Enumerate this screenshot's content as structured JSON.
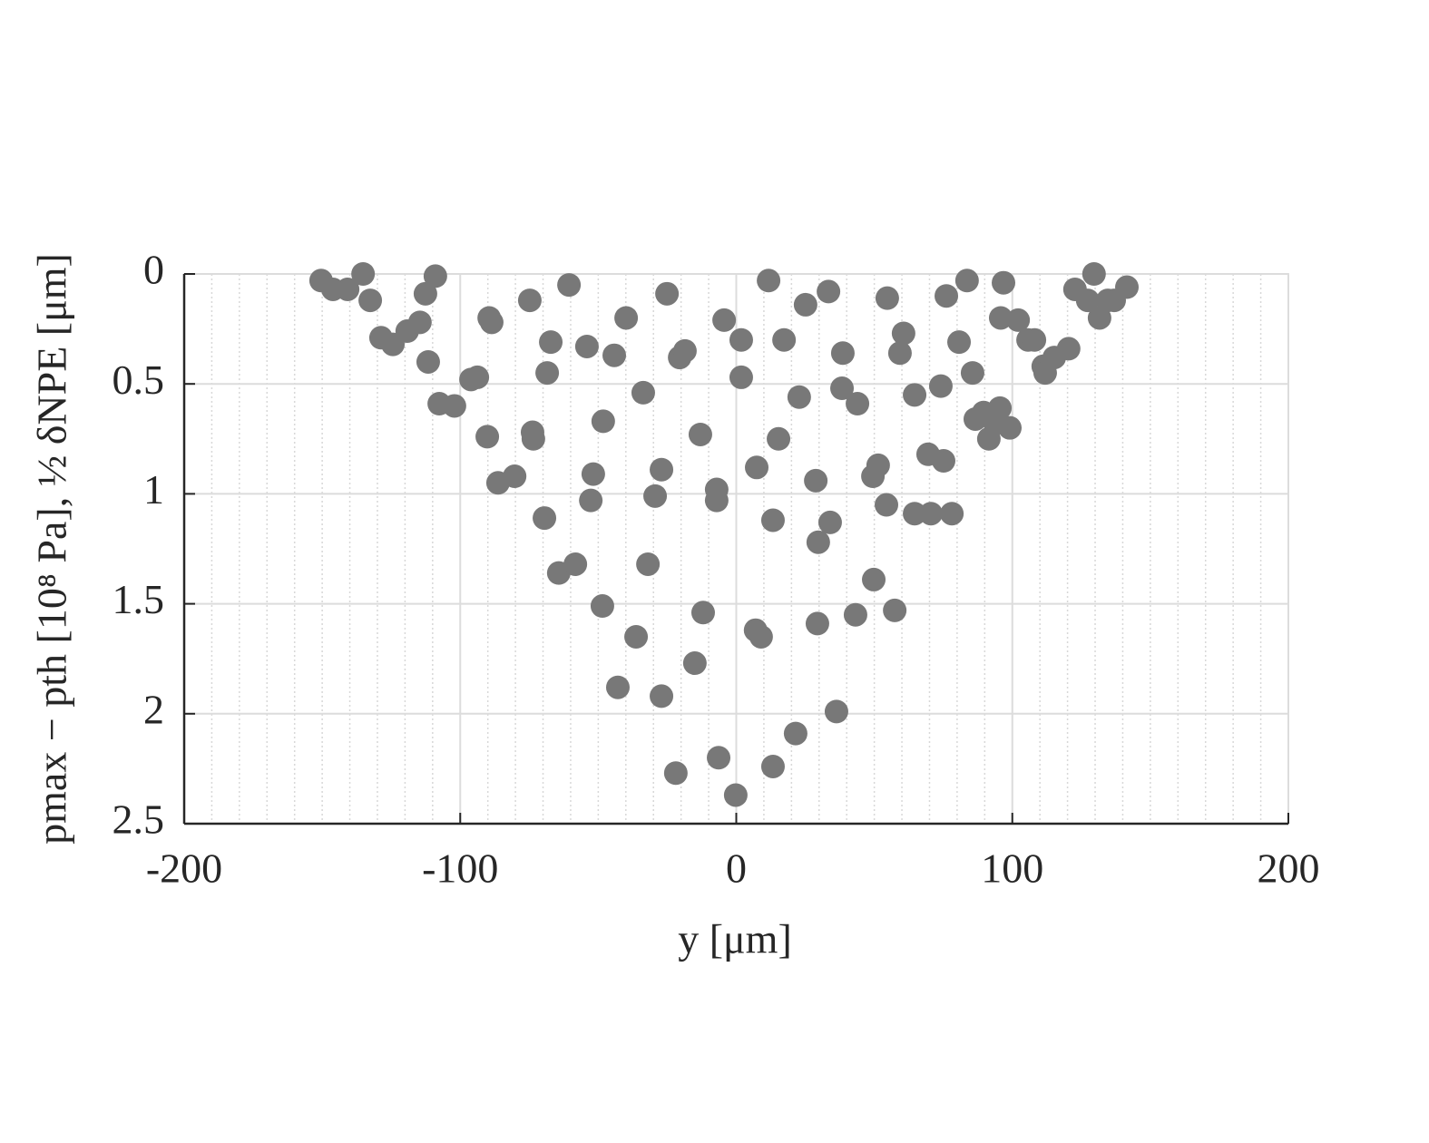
{
  "chart_data": {
    "type": "scatter",
    "x_label": "y [μm]",
    "y_label": "pmax − pth [10⁸ Pa], ½ δNPE [μm]",
    "xlim": [
      -200,
      200
    ],
    "xticks": [
      -200,
      -100,
      0,
      100,
      200
    ],
    "ylim": [
      0,
      2.5
    ],
    "yticks": [
      0,
      0.5,
      1,
      1.5,
      2,
      2.5
    ],
    "y_reversed": true,
    "grid": true,
    "minor_grid": true,
    "color": "#787878",
    "x": [
      -150.4,
      -146.1,
      -140.8,
      -135.2,
      -132.6,
      -128.7,
      -124.4,
      -119.2,
      -114.6,
      -112.6,
      -109.0,
      -111.6,
      -107.6,
      -102.1,
      -96.1,
      -93.8,
      -90.2,
      -89.5,
      -88.6,
      -86.3,
      -80.3,
      -74.8,
      -73.8,
      -73.5,
      -69.5,
      -68.5,
      -67.2,
      -64.3,
      -60.6,
      -58.3,
      -54.1,
      -52.7,
      -51.8,
      -48.5,
      -48.2,
      -44.2,
      -42.9,
      -39.9,
      -36.3,
      -33.7,
      -32.0,
      -29.4,
      -27.1,
      -25.1,
      -27.1,
      -21.9,
      -20.5,
      -18.6,
      -15.0,
      -13.0,
      -12.0,
      -7.1,
      -7.1,
      -6.4,
      -4.4,
      -0.2,
      1.8,
      1.8,
      7.0,
      9.0,
      7.4,
      11.7,
      13.3,
      13.3,
      15.3,
      17.3,
      21.5,
      22.8,
      25.1,
      28.8,
      29.4,
      29.7,
      33.4,
      34.0,
      36.3,
      38.3,
      38.6,
      43.2,
      43.9,
      49.5,
      51.4,
      49.8,
      54.7,
      54.4,
      57.4,
      59.3,
      60.6,
      64.6,
      64.6,
      70.5,
      69.5,
      74.1,
      75.1,
      76.1,
      78.1,
      80.7,
      83.6,
      85.6,
      86.6,
      89.6,
      91.5,
      93.8,
      95.5,
      95.8,
      96.8,
      99.1,
      102.1,
      105.7,
      108.0,
      111.2,
      111.9,
      115.2,
      120.4,
      122.7,
      127.3,
      129.6,
      131.6,
      134.6,
      136.9,
      141.5
    ],
    "values": [
      0.03,
      0.07,
      0.07,
      0.0,
      0.12,
      0.29,
      0.32,
      0.26,
      0.22,
      0.09,
      0.01,
      0.4,
      0.59,
      0.6,
      0.48,
      0.47,
      0.74,
      0.2,
      0.22,
      0.95,
      0.92,
      0.12,
      0.72,
      0.75,
      1.11,
      0.45,
      0.31,
      1.36,
      0.05,
      1.32,
      0.33,
      1.03,
      0.91,
      1.51,
      0.67,
      0.37,
      1.88,
      0.2,
      1.65,
      0.54,
      1.32,
      1.01,
      0.89,
      0.09,
      1.92,
      2.27,
      0.38,
      0.35,
      1.77,
      0.73,
      1.54,
      0.98,
      1.03,
      2.2,
      0.21,
      2.37,
      0.3,
      0.47,
      1.62,
      1.65,
      0.88,
      0.03,
      2.24,
      1.12,
      0.75,
      0.3,
      2.09,
      0.56,
      0.14,
      0.94,
      1.59,
      1.22,
      0.08,
      1.13,
      1.99,
      0.52,
      0.36,
      1.55,
      0.59,
      0.92,
      0.87,
      1.39,
      0.11,
      1.05,
      1.53,
      0.36,
      0.27,
      0.55,
      1.09,
      1.09,
      0.82,
      0.51,
      0.85,
      0.1,
      1.09,
      0.31,
      0.03,
      0.45,
      0.66,
      0.63,
      0.75,
      0.68,
      0.61,
      0.2,
      0.04,
      0.7,
      0.21,
      0.3,
      0.3,
      0.42,
      0.45,
      0.38,
      0.34,
      0.07,
      0.12,
      0.0,
      0.2,
      0.12,
      0.12,
      0.06
    ]
  }
}
